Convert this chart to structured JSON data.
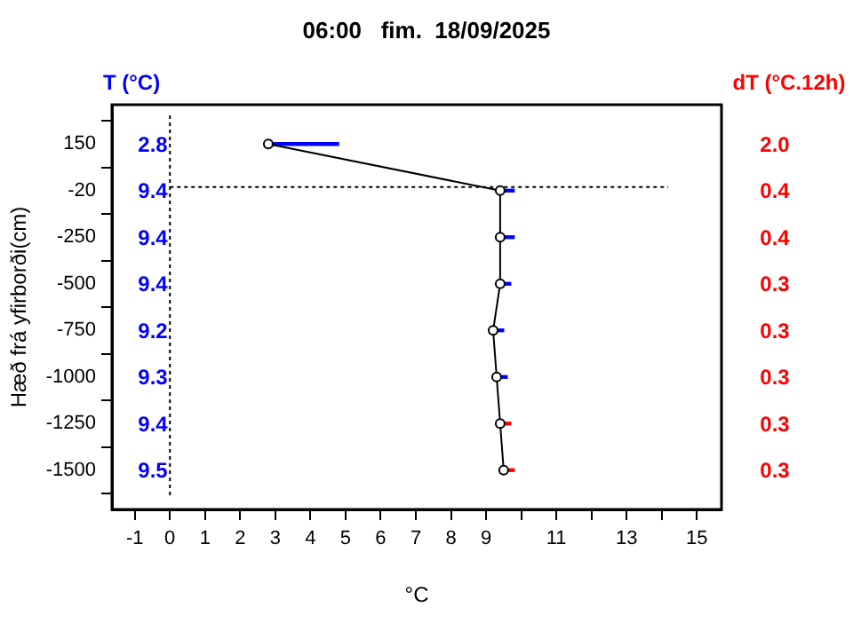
{
  "chart_data": {
    "type": "line",
    "orientation": "horizontal",
    "title": "06:00   fim.  18/09/2025",
    "xlabel": "°C",
    "ylabel": "Hæð frá yfirborði(cm)",
    "categories": [
      "150",
      "-20",
      "-250",
      "-500",
      "-750",
      "-1000",
      "-1250",
      "-1500"
    ],
    "xlim": [
      -1.65,
      15.7
    ],
    "xticks": [
      -1,
      0,
      1,
      2,
      3,
      4,
      5,
      6,
      7,
      8,
      9,
      {
        "value": 10,
        "label": null
      },
      11,
      {
        "value": 12,
        "label": null
      },
      13,
      {
        "value": 14,
        "label": null
      },
      15
    ],
    "series": [
      {
        "color": "#000000",
        "values": [
          2.8,
          9.4,
          9.4,
          9.4,
          9.2,
          9.3,
          9.4,
          9.5
        ]
      },
      {
        "type": "bar",
        "name": "dT (°C.12h)",
        "color": "#ff0000",
        "base": [
          2.8,
          9.4,
          9.4,
          9.4,
          9.2,
          9.3,
          9.4,
          9.5
        ],
        "values": [
          2.0,
          0.4,
          0.4,
          0.3,
          0.3,
          0.3,
          0.3,
          0.3
        ],
        "colors": [
          "#0000ff",
          "#0000ff",
          "#0000ff",
          "#0000ff",
          "#0000ff",
          "#0000ff",
          "#ff0000",
          "#ff0000"
        ],
        "value_labels": [
          "2.0",
          "0.4",
          "0.4",
          "0.3",
          "0.3",
          "0.3",
          "0.3",
          "0.3"
        ]
      }
    ],
    "ref_lines": [
      {
        "axis": "x",
        "value": 0,
        "line_style": "dotted",
        "color": "#000000"
      },
      {
        "axis": "y",
        "value": "-20",
        "line_style": "dotted",
        "color": "#000000"
      }
    ],
    "annotations": [
      "T (°C)",
      "2.8",
      "9.4",
      "9.4",
      "9.4",
      "9.2",
      "9.3",
      "9.4",
      "9.5"
    ],
    "marker": "circle",
    "grid": false,
    "legend": false
  }
}
